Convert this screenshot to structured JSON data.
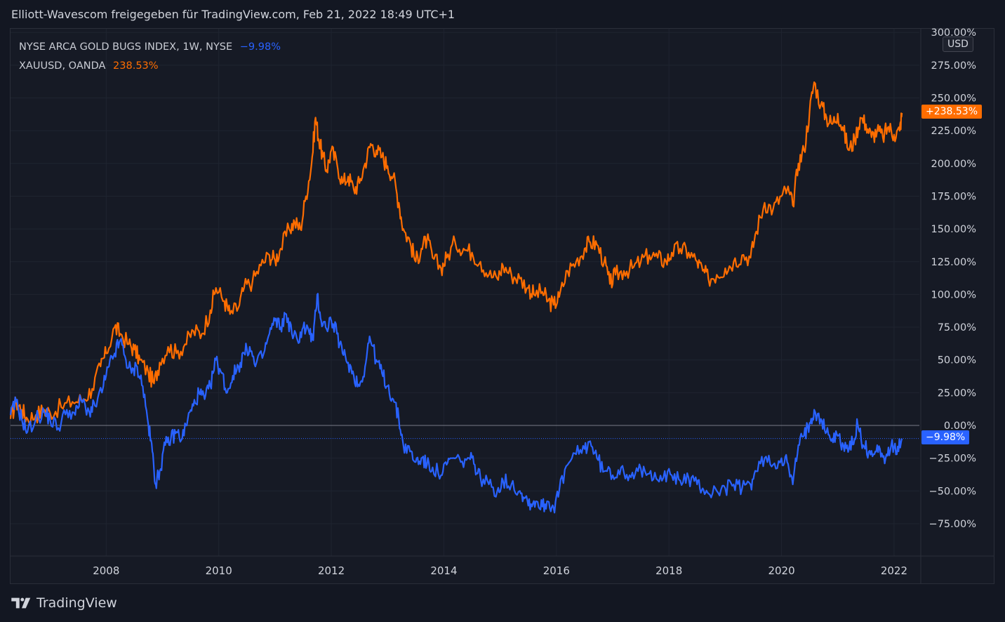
{
  "header": {
    "title": "Elliott-Wavescom freigegeben für TradingView.com, Feb 21, 2022 18:49 UTC+1"
  },
  "legend": {
    "series1_name": "NYSE ARCA GOLD BUGS INDEX, 1W, NYSE",
    "series1_value": "−9.98%",
    "series2_name": "XAUUSD, OANDA",
    "series2_value": "238.53%"
  },
  "axis": {
    "currency": "USD",
    "last_label_orange": "+238.53%",
    "last_label_blue": "−9.98%"
  },
  "footer": {
    "brand": "TradingView",
    "logo_icon": "tradingview-logo-icon"
  },
  "colors": {
    "gold": "#ff6d00",
    "gdx": "#2962ff",
    "background": "#131722",
    "grid": "#1f2430"
  },
  "chart_data": {
    "type": "line",
    "title": "",
    "xlabel": "",
    "ylabel": "",
    "ylim": [
      -100,
      300
    ],
    "xlim": [
      2006.3,
      2022.45
    ],
    "grid": true,
    "legend_position": "top-left",
    "y_ticks": [
      {
        "value": 300,
        "label": "300.00%"
      },
      {
        "value": 275,
        "label": "275.00%"
      },
      {
        "value": 250,
        "label": "250.00%"
      },
      {
        "value": 225,
        "label": "225.00%"
      },
      {
        "value": 200,
        "label": "200.00%"
      },
      {
        "value": 175,
        "label": "175.00%"
      },
      {
        "value": 150,
        "label": "150.00%"
      },
      {
        "value": 125,
        "label": "125.00%"
      },
      {
        "value": 100,
        "label": "100.00%"
      },
      {
        "value": 75,
        "label": "75.00%"
      },
      {
        "value": 50,
        "label": "50.00%"
      },
      {
        "value": 25,
        "label": "25.00%"
      },
      {
        "value": 0,
        "label": "0.00%"
      },
      {
        "value": -25,
        "label": "−25.00%"
      },
      {
        "value": -50,
        "label": "−50.00%"
      },
      {
        "value": -75,
        "label": "−75.00%"
      }
    ],
    "x_ticks": [
      {
        "value": 2008,
        "label": "2008"
      },
      {
        "value": 2010,
        "label": "2010"
      },
      {
        "value": 2012,
        "label": "2012"
      },
      {
        "value": 2014,
        "label": "2014"
      },
      {
        "value": 2016,
        "label": "2016"
      },
      {
        "value": 2018,
        "label": "2018"
      },
      {
        "value": 2020,
        "label": "2020"
      },
      {
        "value": 2022,
        "label": "2022"
      }
    ],
    "series": [
      {
        "name": "XAUUSD, OANDA",
        "color": "#ff6d00",
        "points": [
          [
            2006.3,
            5
          ],
          [
            2006.4,
            18
          ],
          [
            2006.5,
            12
          ],
          [
            2006.6,
            5
          ],
          [
            2006.75,
            8
          ],
          [
            2006.9,
            12
          ],
          [
            2007.0,
            10
          ],
          [
            2007.2,
            14
          ],
          [
            2007.4,
            18
          ],
          [
            2007.6,
            20
          ],
          [
            2007.75,
            28
          ],
          [
            2007.9,
            45
          ],
          [
            2008.0,
            55
          ],
          [
            2008.15,
            75
          ],
          [
            2008.25,
            70
          ],
          [
            2008.4,
            62
          ],
          [
            2008.5,
            58
          ],
          [
            2008.6,
            50
          ],
          [
            2008.75,
            40
          ],
          [
            2008.85,
            32
          ],
          [
            2008.95,
            48
          ],
          [
            2009.1,
            60
          ],
          [
            2009.25,
            55
          ],
          [
            2009.4,
            62
          ],
          [
            2009.55,
            72
          ],
          [
            2009.7,
            70
          ],
          [
            2009.85,
            88
          ],
          [
            2009.95,
            105
          ],
          [
            2010.1,
            95
          ],
          [
            2010.2,
            85
          ],
          [
            2010.35,
            90
          ],
          [
            2010.45,
            105
          ],
          [
            2010.6,
            110
          ],
          [
            2010.75,
            122
          ],
          [
            2010.9,
            130
          ],
          [
            2011.0,
            126
          ],
          [
            2011.1,
            135
          ],
          [
            2011.25,
            150
          ],
          [
            2011.35,
            155
          ],
          [
            2011.45,
            150
          ],
          [
            2011.55,
            175
          ],
          [
            2011.65,
            200
          ],
          [
            2011.72,
            235
          ],
          [
            2011.78,
            218
          ],
          [
            2011.85,
            205
          ],
          [
            2011.92,
            195
          ],
          [
            2012.0,
            210
          ],
          [
            2012.1,
            200
          ],
          [
            2012.2,
            185
          ],
          [
            2012.3,
            190
          ],
          [
            2012.4,
            180
          ],
          [
            2012.5,
            185
          ],
          [
            2012.6,
            200
          ],
          [
            2012.7,
            215
          ],
          [
            2012.8,
            210
          ],
          [
            2012.9,
            205
          ],
          [
            2013.0,
            198
          ],
          [
            2013.1,
            190
          ],
          [
            2013.2,
            170
          ],
          [
            2013.28,
            150
          ],
          [
            2013.4,
            140
          ],
          [
            2013.5,
            125
          ],
          [
            2013.6,
            135
          ],
          [
            2013.7,
            142
          ],
          [
            2013.8,
            128
          ],
          [
            2013.95,
            120
          ],
          [
            2014.05,
            128
          ],
          [
            2014.2,
            140
          ],
          [
            2014.35,
            135
          ],
          [
            2014.5,
            132
          ],
          [
            2014.65,
            125
          ],
          [
            2014.8,
            115
          ],
          [
            2014.95,
            112
          ],
          [
            2015.05,
            122
          ],
          [
            2015.2,
            115
          ],
          [
            2015.35,
            112
          ],
          [
            2015.5,
            105
          ],
          [
            2015.6,
            100
          ],
          [
            2015.75,
            102
          ],
          [
            2015.85,
            95
          ],
          [
            2015.95,
            92
          ],
          [
            2016.05,
            98
          ],
          [
            2016.2,
            118
          ],
          [
            2016.35,
            125
          ],
          [
            2016.5,
            135
          ],
          [
            2016.6,
            140
          ],
          [
            2016.72,
            138
          ],
          [
            2016.85,
            125
          ],
          [
            2016.95,
            108
          ],
          [
            2017.05,
            115
          ],
          [
            2017.2,
            118
          ],
          [
            2017.35,
            120
          ],
          [
            2017.5,
            125
          ],
          [
            2017.65,
            130
          ],
          [
            2017.8,
            128
          ],
          [
            2017.95,
            125
          ],
          [
            2018.05,
            132
          ],
          [
            2018.2,
            135
          ],
          [
            2018.35,
            132
          ],
          [
            2018.5,
            125
          ],
          [
            2018.6,
            118
          ],
          [
            2018.7,
            112
          ],
          [
            2018.85,
            115
          ],
          [
            2019.0,
            120
          ],
          [
            2019.15,
            125
          ],
          [
            2019.3,
            130
          ],
          [
            2019.45,
            128
          ],
          [
            2019.55,
            148
          ],
          [
            2019.7,
            170
          ],
          [
            2019.85,
            165
          ],
          [
            2020.0,
            175
          ],
          [
            2020.1,
            180
          ],
          [
            2020.2,
            168
          ],
          [
            2020.3,
            200
          ],
          [
            2020.4,
            210
          ],
          [
            2020.5,
            240
          ],
          [
            2020.58,
            262
          ],
          [
            2020.7,
            245
          ],
          [
            2020.8,
            235
          ],
          [
            2020.9,
            230
          ],
          [
            2021.0,
            238
          ],
          [
            2021.1,
            225
          ],
          [
            2021.2,
            210
          ],
          [
            2021.3,
            218
          ],
          [
            2021.4,
            235
          ],
          [
            2021.5,
            230
          ],
          [
            2021.6,
            220
          ],
          [
            2021.7,
            225
          ],
          [
            2021.8,
            220
          ],
          [
            2021.9,
            228
          ],
          [
            2022.0,
            222
          ],
          [
            2022.1,
            225
          ],
          [
            2022.14,
            238.53
          ]
        ]
      },
      {
        "name": "NYSE ARCA GOLD BUGS INDEX, 1W, NYSE",
        "color": "#2962ff",
        "points": [
          [
            2006.3,
            8
          ],
          [
            2006.4,
            18
          ],
          [
            2006.5,
            5
          ],
          [
            2006.6,
            -5
          ],
          [
            2006.75,
            5
          ],
          [
            2006.9,
            10
          ],
          [
            2007.0,
            5
          ],
          [
            2007.15,
            -2
          ],
          [
            2007.3,
            12
          ],
          [
            2007.45,
            8
          ],
          [
            2007.55,
            20
          ],
          [
            2007.7,
            10
          ],
          [
            2007.8,
            15
          ],
          [
            2007.95,
            30
          ],
          [
            2008.05,
            45
          ],
          [
            2008.15,
            55
          ],
          [
            2008.25,
            65
          ],
          [
            2008.35,
            50
          ],
          [
            2008.45,
            40
          ],
          [
            2008.55,
            45
          ],
          [
            2008.65,
            30
          ],
          [
            2008.75,
            0
          ],
          [
            2008.82,
            -20
          ],
          [
            2008.88,
            -45
          ],
          [
            2008.95,
            -35
          ],
          [
            2009.05,
            -15
          ],
          [
            2009.15,
            -10
          ],
          [
            2009.25,
            -5
          ],
          [
            2009.35,
            -10
          ],
          [
            2009.45,
            5
          ],
          [
            2009.55,
            15
          ],
          [
            2009.65,
            25
          ],
          [
            2009.75,
            20
          ],
          [
            2009.85,
            30
          ],
          [
            2009.95,
            50
          ],
          [
            2010.05,
            40
          ],
          [
            2010.15,
            25
          ],
          [
            2010.25,
            38
          ],
          [
            2010.35,
            45
          ],
          [
            2010.45,
            55
          ],
          [
            2010.55,
            60
          ],
          [
            2010.65,
            45
          ],
          [
            2010.8,
            55
          ],
          [
            2010.9,
            70
          ],
          [
            2011.0,
            80
          ],
          [
            2011.1,
            75
          ],
          [
            2011.2,
            85
          ],
          [
            2011.3,
            70
          ],
          [
            2011.4,
            65
          ],
          [
            2011.5,
            75
          ],
          [
            2011.6,
            72
          ],
          [
            2011.68,
            65
          ],
          [
            2011.75,
            100
          ],
          [
            2011.82,
            80
          ],
          [
            2011.9,
            75
          ],
          [
            2012.0,
            80
          ],
          [
            2012.1,
            70
          ],
          [
            2012.2,
            55
          ],
          [
            2012.3,
            48
          ],
          [
            2012.4,
            38
          ],
          [
            2012.5,
            30
          ],
          [
            2012.6,
            45
          ],
          [
            2012.68,
            68
          ],
          [
            2012.8,
            50
          ],
          [
            2012.9,
            40
          ],
          [
            2013.0,
            30
          ],
          [
            2013.1,
            20
          ],
          [
            2013.2,
            5
          ],
          [
            2013.28,
            -15
          ],
          [
            2013.4,
            -20
          ],
          [
            2013.5,
            -28
          ],
          [
            2013.6,
            -25
          ],
          [
            2013.7,
            -30
          ],
          [
            2013.8,
            -32
          ],
          [
            2013.95,
            -38
          ],
          [
            2014.05,
            -30
          ],
          [
            2014.15,
            -25
          ],
          [
            2014.3,
            -28
          ],
          [
            2014.45,
            -25
          ],
          [
            2014.55,
            -30
          ],
          [
            2014.65,
            -40
          ],
          [
            2014.8,
            -45
          ],
          [
            2014.95,
            -50
          ],
          [
            2015.05,
            -42
          ],
          [
            2015.2,
            -45
          ],
          [
            2015.35,
            -50
          ],
          [
            2015.45,
            -55
          ],
          [
            2015.55,
            -60
          ],
          [
            2015.65,
            -58
          ],
          [
            2015.75,
            -62
          ],
          [
            2015.85,
            -58
          ],
          [
            2015.95,
            -63
          ],
          [
            2016.05,
            -50
          ],
          [
            2016.2,
            -30
          ],
          [
            2016.35,
            -22
          ],
          [
            2016.5,
            -18
          ],
          [
            2016.6,
            -12
          ],
          [
            2016.72,
            -25
          ],
          [
            2016.85,
            -35
          ],
          [
            2017.0,
            -38
          ],
          [
            2017.15,
            -32
          ],
          [
            2017.3,
            -38
          ],
          [
            2017.45,
            -35
          ],
          [
            2017.6,
            -38
          ],
          [
            2017.75,
            -36
          ],
          [
            2017.9,
            -40
          ],
          [
            2018.05,
            -38
          ],
          [
            2018.2,
            -42
          ],
          [
            2018.35,
            -40
          ],
          [
            2018.5,
            -45
          ],
          [
            2018.6,
            -48
          ],
          [
            2018.7,
            -52
          ],
          [
            2018.85,
            -50
          ],
          [
            2019.0,
            -48
          ],
          [
            2019.15,
            -45
          ],
          [
            2019.3,
            -48
          ],
          [
            2019.45,
            -45
          ],
          [
            2019.55,
            -35
          ],
          [
            2019.7,
            -25
          ],
          [
            2019.85,
            -30
          ],
          [
            2020.0,
            -25
          ],
          [
            2020.1,
            -28
          ],
          [
            2020.2,
            -45
          ],
          [
            2020.3,
            -15
          ],
          [
            2020.4,
            -8
          ],
          [
            2020.5,
            2
          ],
          [
            2020.58,
            12
          ],
          [
            2020.7,
            5
          ],
          [
            2020.8,
            -5
          ],
          [
            2020.9,
            -10
          ],
          [
            2021.0,
            -8
          ],
          [
            2021.1,
            -15
          ],
          [
            2021.2,
            -18
          ],
          [
            2021.3,
            -10
          ],
          [
            2021.35,
            2
          ],
          [
            2021.45,
            -15
          ],
          [
            2021.55,
            -20
          ],
          [
            2021.65,
            -22
          ],
          [
            2021.75,
            -18
          ],
          [
            2021.85,
            -25
          ],
          [
            2021.95,
            -15
          ],
          [
            2022.05,
            -22
          ],
          [
            2022.14,
            -9.98
          ]
        ]
      }
    ],
    "zero_line": 0,
    "last_value_line": -9.98
  }
}
